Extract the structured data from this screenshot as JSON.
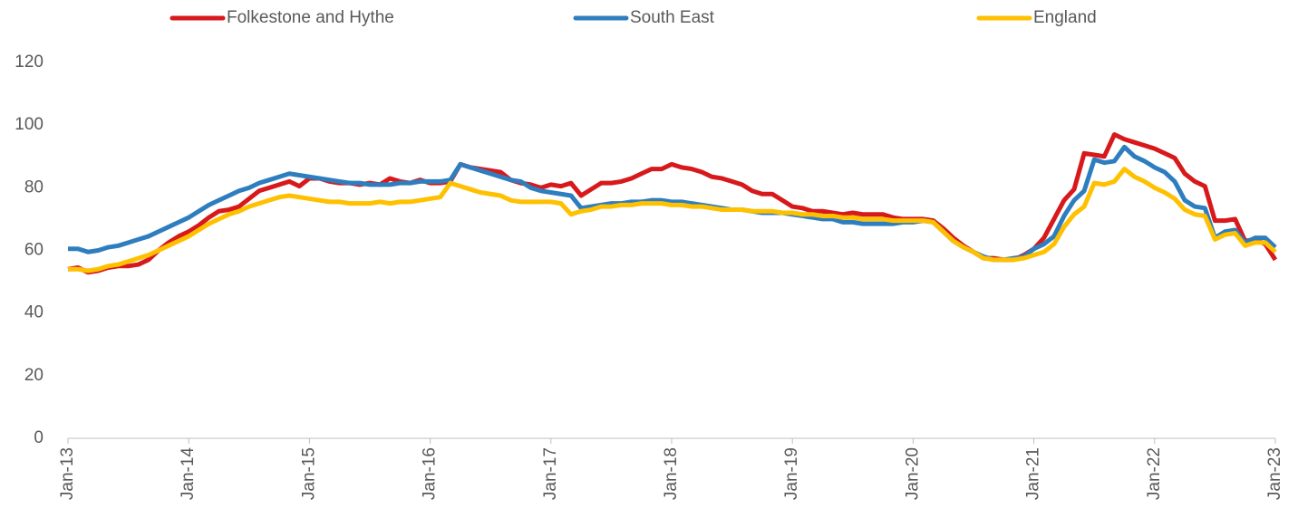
{
  "chart_data": {
    "type": "line",
    "categories": [
      "Jan-13",
      null,
      null,
      null,
      null,
      null,
      null,
      null,
      null,
      null,
      null,
      null,
      "Jan-14",
      null,
      null,
      null,
      null,
      null,
      null,
      null,
      null,
      null,
      null,
      null,
      "Jan-15",
      null,
      null,
      null,
      null,
      null,
      null,
      null,
      null,
      null,
      null,
      null,
      "Jan-16",
      null,
      null,
      null,
      null,
      null,
      null,
      null,
      null,
      null,
      null,
      null,
      "Jan-17",
      null,
      null,
      null,
      null,
      null,
      null,
      null,
      null,
      null,
      null,
      null,
      "Jan-18",
      null,
      null,
      null,
      null,
      null,
      null,
      null,
      null,
      null,
      null,
      null,
      "Jan-19",
      null,
      null,
      null,
      null,
      null,
      null,
      null,
      null,
      null,
      null,
      null,
      "Jan-20",
      null,
      null,
      null,
      null,
      null,
      null,
      null,
      null,
      null,
      null,
      null,
      "Jan-21",
      null,
      null,
      null,
      null,
      null,
      null,
      null,
      null,
      null,
      null,
      null,
      "Jan-22",
      null,
      null,
      null,
      null,
      null,
      null,
      null,
      null,
      null,
      null,
      null,
      "Jan-23"
    ],
    "series": [
      {
        "name": "Folkestone and Hythe",
        "color": "#d7191c",
        "values": [
          54,
          54.5,
          53,
          53.5,
          54.5,
          55,
          55,
          55.5,
          57,
          60,
          62.5,
          64.5,
          66,
          68,
          70.5,
          72.5,
          73,
          74,
          76.5,
          79,
          80,
          81,
          82,
          80.5,
          83,
          83,
          82,
          81.5,
          81.5,
          81,
          81.5,
          81,
          83,
          82,
          81.5,
          82.5,
          81.5,
          81.5,
          82,
          87.5,
          86.5,
          86,
          85.5,
          85,
          82.5,
          81.5,
          81,
          80,
          81,
          80.5,
          81.5,
          77.5,
          79.5,
          81.5,
          81.5,
          82,
          83,
          84.5,
          86,
          86,
          87.5,
          86.5,
          86,
          85,
          83.5,
          83,
          82,
          81,
          79,
          78,
          78,
          76,
          74,
          73.5,
          72.5,
          72.5,
          72,
          71.5,
          72,
          71.5,
          71.5,
          71.5,
          70.5,
          70,
          70,
          70,
          69.5,
          67,
          64,
          61.5,
          59.5,
          57.5,
          57.5,
          57,
          57,
          58.5,
          60.5,
          64,
          70,
          76,
          79.5,
          91,
          90.5,
          90,
          97,
          95.5,
          94.5,
          93.5,
          92.5,
          91,
          89.5,
          84.5,
          82,
          80.5,
          69.5,
          69.5,
          70,
          63,
          63.5,
          62,
          57
        ]
      },
      {
        "name": "South East",
        "color": "#2e7ebf",
        "values": [
          60.5,
          60.5,
          59.5,
          60,
          61,
          61.5,
          62.5,
          63.5,
          64.5,
          66,
          67.5,
          69,
          70.5,
          72.5,
          74.5,
          76,
          77.5,
          79,
          80,
          81.5,
          82.5,
          83.5,
          84.5,
          84,
          83.5,
          83,
          82.5,
          82,
          81.5,
          81.5,
          81,
          81,
          81,
          81.5,
          81.5,
          82,
          82,
          82,
          82.5,
          87.5,
          86.5,
          85.5,
          84.5,
          83.5,
          82.5,
          82,
          80,
          79,
          78.5,
          78,
          77.5,
          73.5,
          74,
          74.5,
          75,
          75,
          75.5,
          75.5,
          76,
          76,
          75.5,
          75.5,
          75,
          74.5,
          74,
          73.5,
          73,
          73,
          72.5,
          72,
          72,
          72,
          71.5,
          71,
          70.5,
          70,
          70,
          69,
          69,
          68.5,
          68.5,
          68.5,
          68.5,
          69,
          69,
          69.5,
          69,
          66,
          63,
          61,
          59.5,
          58,
          57,
          57,
          57.5,
          58,
          60.5,
          62,
          64.5,
          71,
          76,
          79,
          89,
          88,
          88.5,
          93,
          90,
          88.5,
          86.5,
          85,
          82,
          76,
          74,
          73.5,
          64,
          66,
          66.5,
          62.5,
          64,
          64,
          61
        ]
      },
      {
        "name": "England",
        "color": "#ffc000",
        "values": [
          54,
          54,
          53.5,
          54,
          55,
          55.5,
          56.5,
          57.5,
          58.5,
          60,
          61.5,
          63,
          64.5,
          66.5,
          68.5,
          70,
          71.5,
          72.5,
          74,
          75,
          76,
          77,
          77.5,
          77,
          76.5,
          76,
          75.5,
          75.5,
          75,
          75,
          75,
          75.5,
          75,
          75.5,
          75.5,
          76,
          76.5,
          77,
          81.5,
          80.5,
          79.5,
          78.5,
          78,
          77.5,
          76,
          75.5,
          75.5,
          75.5,
          75.5,
          75,
          71.5,
          72.5,
          73,
          74,
          74,
          74.5,
          74.5,
          75,
          75,
          75,
          74.5,
          74.5,
          74,
          74,
          73.5,
          73,
          73,
          73,
          72.5,
          72.5,
          72.5,
          72,
          72,
          71.5,
          71.5,
          71,
          71,
          70.5,
          70.5,
          70,
          70,
          70,
          69.5,
          69.5,
          69.5,
          69.5,
          69,
          66,
          63,
          61,
          59.5,
          57.5,
          57,
          57,
          57,
          57.5,
          58.5,
          59.5,
          62,
          67.5,
          71.5,
          74,
          81.5,
          81,
          82,
          86,
          83.5,
          82,
          80,
          78.5,
          76.5,
          73,
          71.5,
          71,
          63.5,
          65,
          65.5,
          61.5,
          62.5,
          62.5,
          59.5
        ]
      }
    ],
    "ylim": [
      0,
      120
    ],
    "yticks": [
      0,
      20,
      40,
      60,
      80,
      100,
      120
    ],
    "grid": false,
    "legend": "top"
  }
}
